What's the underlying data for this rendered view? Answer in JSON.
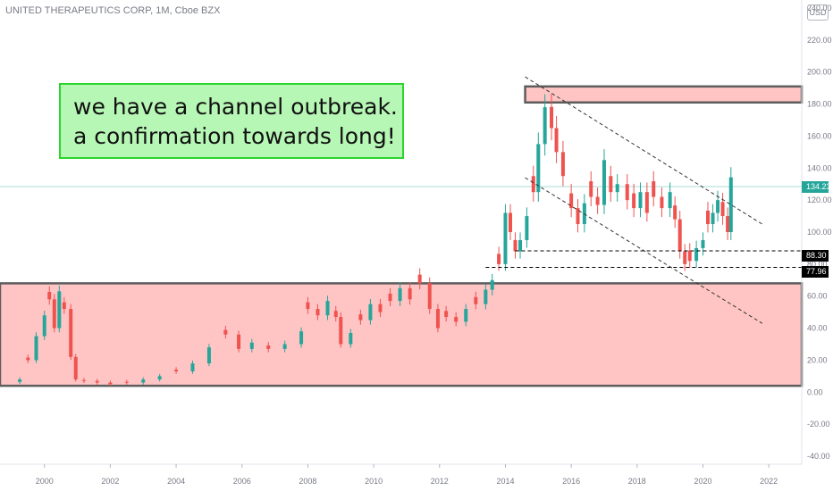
{
  "header": {
    "title": "UNITED THERAPEUTICS CORP, 1M, Cboe BZX",
    "currency": "USD"
  },
  "annotation": {
    "lines": [
      "we have a channel outbreak.",
      "a confirmation towards long!"
    ]
  },
  "price_tags": {
    "last": "134.23",
    "level1": "88.30",
    "level2": "77.96"
  },
  "colors": {
    "up": "#26a69a",
    "down": "#ef5350",
    "zone_fill": "#ffc4c4",
    "zone_border": "#5d5d5d",
    "annotation_fill": "#b7f7b5",
    "annotation_border": "#2bd52b"
  },
  "chart_data": {
    "type": "candlestick",
    "title": "UNITED THERAPEUTICS CORP, 1M, Cboe BZX",
    "x_ticks": [
      "2000",
      "2002",
      "2004",
      "2006",
      "2008",
      "2010",
      "2012",
      "2014",
      "2016",
      "2018",
      "2020",
      "2022"
    ],
    "y_ticks": [
      "240.00",
      "220.00",
      "200.00",
      "180.00",
      "160.00",
      "140.00",
      "120.00",
      "100.00",
      "80.00",
      "60.00",
      "40.00",
      "20.00",
      "0.00",
      "-20.00",
      "-40.00"
    ],
    "ylim": [
      -45,
      245
    ],
    "xlim": [
      1998.65,
      2023.0
    ],
    "last_price": 134.23,
    "horizontal_levels": [
      88.3,
      77.96
    ],
    "zones": [
      {
        "x": [
          2014.6,
          2023.0
        ],
        "y": [
          181,
          191
        ]
      },
      {
        "x": [
          1998.65,
          2023.0
        ],
        "y": [
          4,
          68
        ]
      }
    ],
    "trend_lines": [
      {
        "points": [
          [
            2014.6,
            197.0
          ],
          [
            2021.8,
            105.0
          ]
        ],
        "style": "dashed"
      },
      {
        "points": [
          [
            2014.6,
            134.0
          ],
          [
            2021.8,
            43.0
          ]
        ],
        "style": "dashed"
      }
    ],
    "series": [
      {
        "name": "close",
        "points": [
          [
            1999.25,
            8
          ],
          [
            1999.5,
            20
          ],
          [
            1999.75,
            35
          ],
          [
            2000.0,
            48
          ],
          [
            2000.15,
            58
          ],
          [
            2000.3,
            40
          ],
          [
            2000.45,
            63
          ],
          [
            2000.6,
            52
          ],
          [
            2000.8,
            22
          ],
          [
            2000.95,
            8
          ],
          [
            2001.2,
            7
          ],
          [
            2001.6,
            6
          ],
          [
            2002.0,
            5
          ],
          [
            2002.5,
            6
          ],
          [
            2003.0,
            8
          ],
          [
            2003.5,
            10
          ],
          [
            2004.0,
            13
          ],
          [
            2004.5,
            18
          ],
          [
            2005.0,
            28
          ],
          [
            2005.5,
            36
          ],
          [
            2005.9,
            27
          ],
          [
            2006.3,
            31
          ],
          [
            2006.8,
            27
          ],
          [
            2007.3,
            30
          ],
          [
            2007.8,
            38
          ],
          [
            2008.0,
            52
          ],
          [
            2008.3,
            48
          ],
          [
            2008.6,
            57
          ],
          [
            2008.85,
            47
          ],
          [
            2009.0,
            30
          ],
          [
            2009.3,
            37
          ],
          [
            2009.6,
            45
          ],
          [
            2009.9,
            55
          ],
          [
            2010.2,
            50
          ],
          [
            2010.5,
            57
          ],
          [
            2010.8,
            65
          ],
          [
            2011.1,
            58
          ],
          [
            2011.4,
            68
          ],
          [
            2011.7,
            52
          ],
          [
            2011.95,
            40
          ],
          [
            2012.2,
            47
          ],
          [
            2012.5,
            44
          ],
          [
            2012.8,
            52
          ],
          [
            2013.1,
            55
          ],
          [
            2013.4,
            64
          ],
          [
            2013.6,
            70
          ],
          [
            2013.8,
            80
          ],
          [
            2014.0,
            112
          ],
          [
            2014.15,
            100
          ],
          [
            2014.3,
            88
          ],
          [
            2014.45,
            95
          ],
          [
            2014.65,
            110
          ],
          [
            2014.85,
            125
          ],
          [
            2015.0,
            155
          ],
          [
            2015.2,
            178
          ],
          [
            2015.4,
            165
          ],
          [
            2015.55,
            150
          ],
          [
            2015.75,
            135
          ],
          [
            2016.0,
            115
          ],
          [
            2016.2,
            105
          ],
          [
            2016.4,
            118
          ],
          [
            2016.6,
            122
          ],
          [
            2016.8,
            117
          ],
          [
            2017.0,
            145
          ],
          [
            2017.2,
            125
          ],
          [
            2017.4,
            130
          ],
          [
            2017.7,
            120
          ],
          [
            2017.9,
            115
          ],
          [
            2018.1,
            125
          ],
          [
            2018.3,
            112
          ],
          [
            2018.5,
            122
          ],
          [
            2018.75,
            115
          ],
          [
            2019.0,
            125
          ],
          [
            2019.15,
            108
          ],
          [
            2019.3,
            88
          ],
          [
            2019.45,
            80
          ],
          [
            2019.6,
            82
          ],
          [
            2019.8,
            90
          ],
          [
            2020.0,
            95
          ],
          [
            2020.15,
            105
          ],
          [
            2020.3,
            112
          ],
          [
            2020.45,
            120
          ],
          [
            2020.6,
            110
          ],
          [
            2020.75,
            100
          ],
          [
            2020.85,
            134.23
          ]
        ]
      }
    ]
  }
}
